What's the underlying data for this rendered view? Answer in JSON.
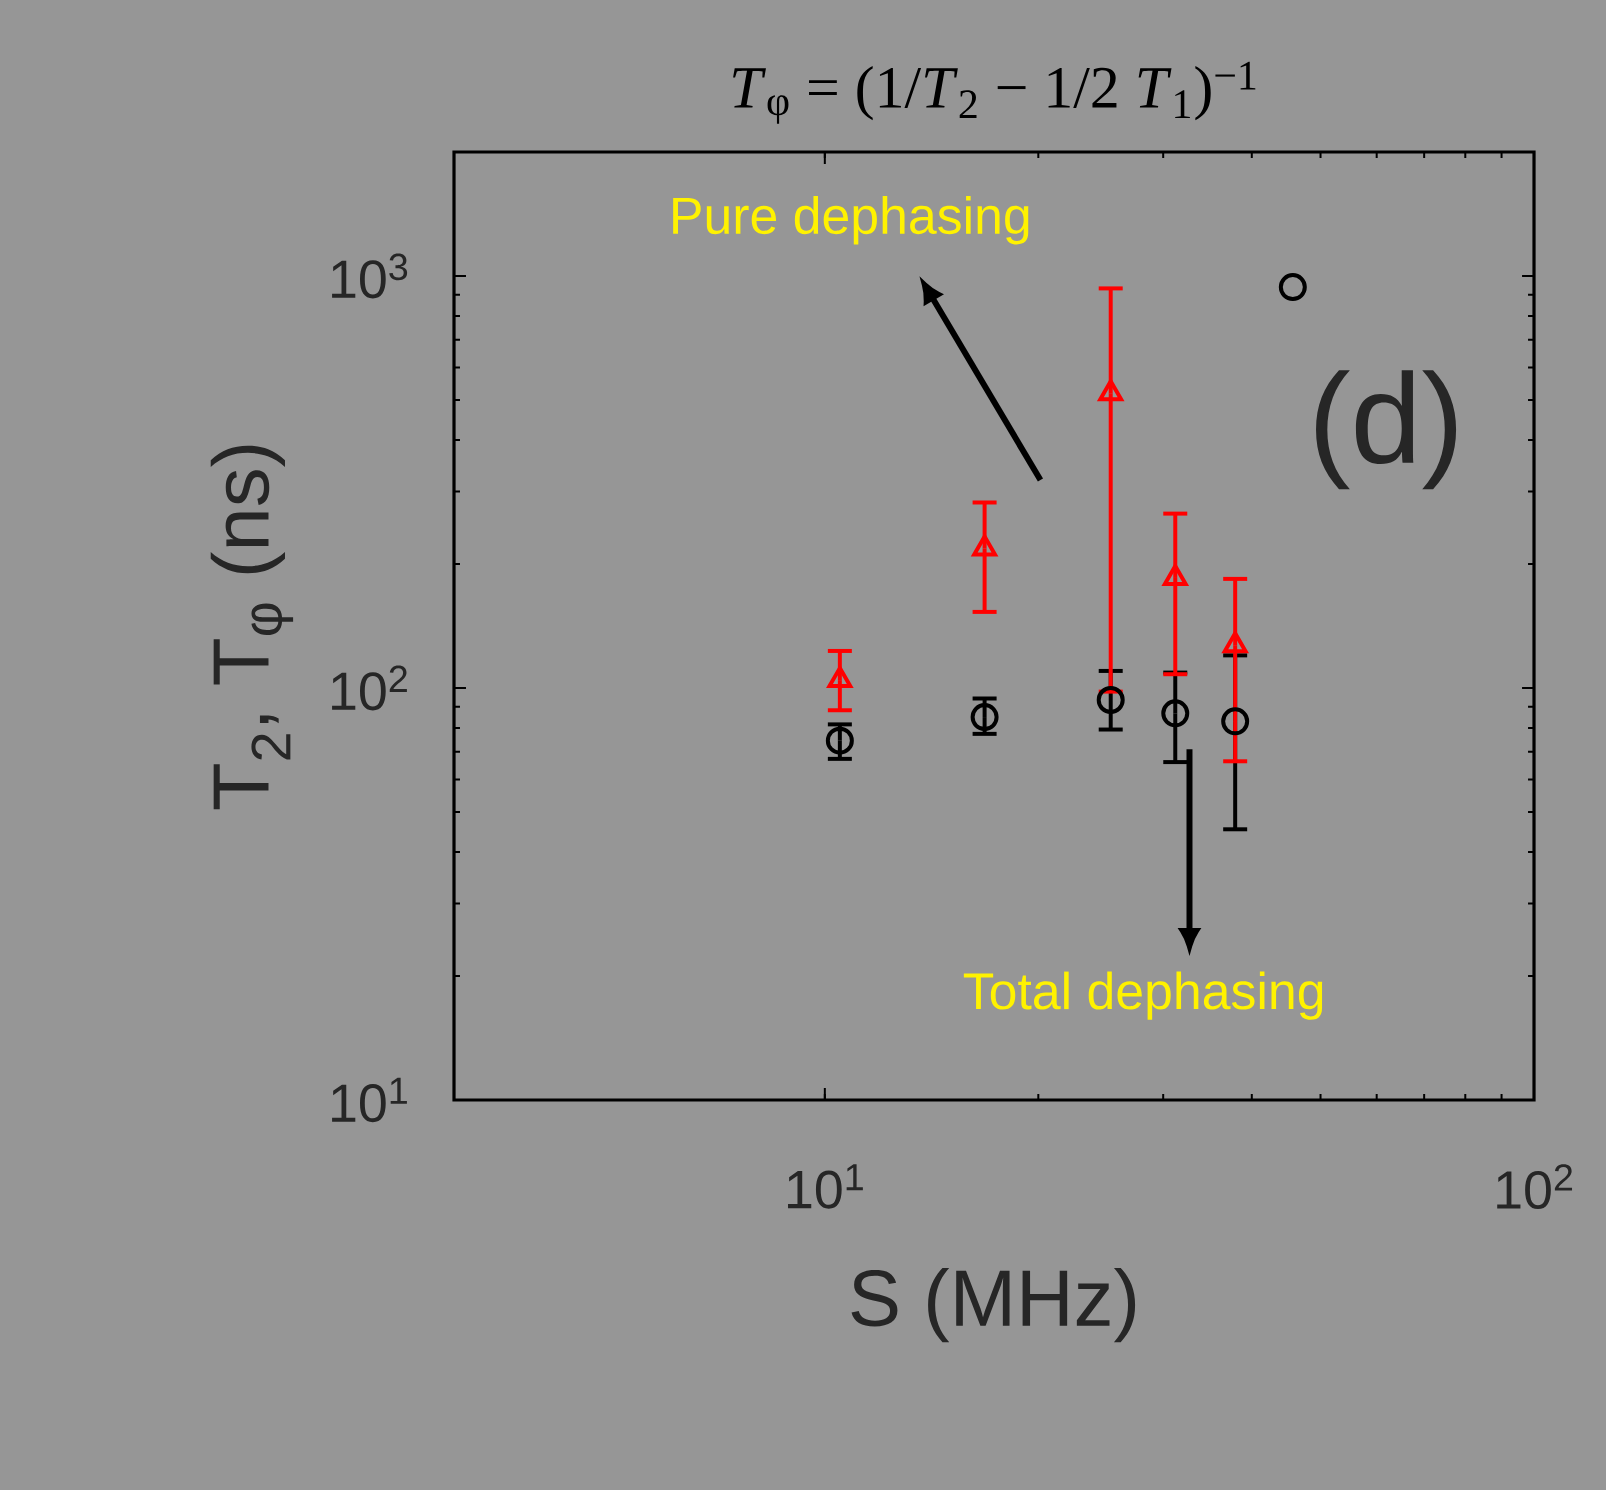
{
  "chart_data": {
    "type": "scatter",
    "title": "*T*$_{φ}$ = (1/*T*$_{2}$ − 1/2 *T*$_{1}$)$^{−1}$",
    "xlabel": "S (MHz)",
    "ylabel": "T$_{2}$, T$_{φ}$ (ns)",
    "log": "xy",
    "xlim": [
      3,
      100
    ],
    "ylim": [
      10,
      2000
    ],
    "xticks": [
      {
        "value": 10,
        "label": "10$^{1}$"
      },
      {
        "value": 100,
        "label": "10$^{2}$"
      }
    ],
    "yticks": [
      {
        "value": 10,
        "label": "10$^{1}$"
      },
      {
        "value": 100,
        "label": "10$^{2}$"
      },
      {
        "value": 1000,
        "label": "10$^{3}$"
      }
    ],
    "series": [
      {
        "color": "#000000",
        "marker": "circle",
        "x": [
          10.5,
          16.8,
          25.3,
          31.2,
          37.9,
          45.7
        ],
        "values": [
          74.5,
          85,
          93.5,
          86.8,
          83,
          940
        ],
        "errors": [
          [
            67.3,
            81.6
          ],
          [
            77.4,
            94.3
          ],
          [
            79.3,
            110
          ],
          [
            66.1,
            109
          ],
          [
            45.4,
            120
          ],
          null
        ]
      },
      {
        "color": "#ff0000",
        "marker": "triangle",
        "x": [
          10.5,
          16.8,
          25.3,
          31.2,
          37.9
        ],
        "values": [
          104.5,
          218,
          519,
          185,
          127
        ],
        "errors": [
          [
            88.3,
            123
          ],
          [
            153,
            282
          ],
          [
            98,
            933
          ],
          [
            108,
            265
          ],
          [
            66.4,
            184
          ]
        ]
      }
    ],
    "annotations": [
      "Pure dephasing",
      "Total dephasing",
      "(d)"
    ]
  }
}
